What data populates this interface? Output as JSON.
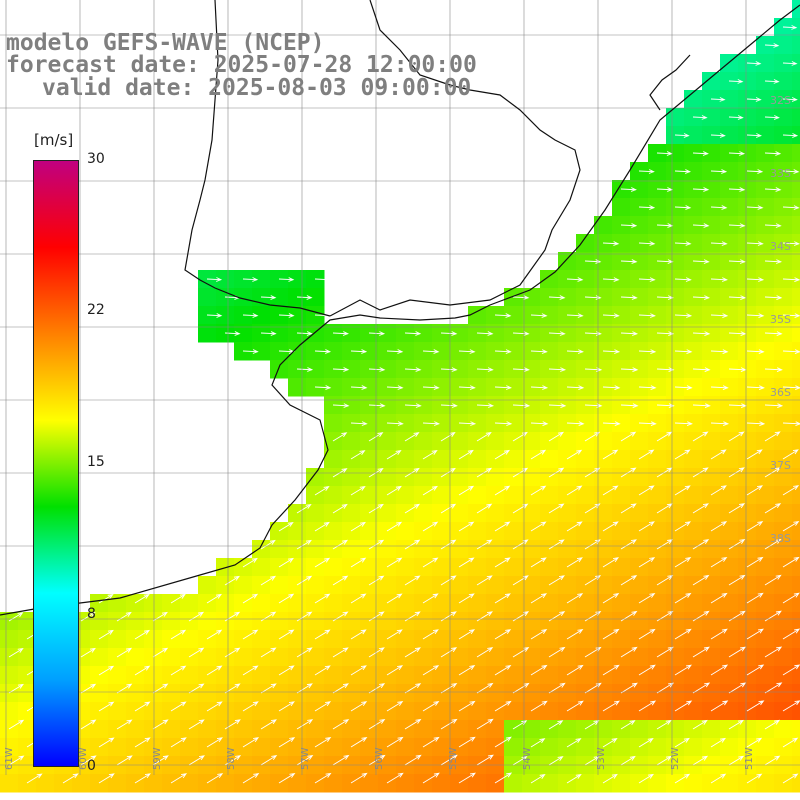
{
  "title": {
    "line1": "modelo GEFS-WAVE (NCEP)",
    "line2": "forecast date: 2025-07-28 12:00:00",
    "line3": "valid date: 2025-08-03 09:00:00"
  },
  "colorbar": {
    "unit": "[m/s]",
    "min": 0,
    "max": 30,
    "tick_labels": [
      "30",
      "22",
      "15",
      "8",
      "0"
    ],
    "tick_values": [
      30,
      22,
      15,
      8,
      0
    ],
    "colors": [
      "#0000ff",
      "#00a0ff",
      "#00ffff",
      "#00e000",
      "#ffff00",
      "#ff8000",
      "#ff0000",
      "#c00080"
    ]
  },
  "lat_labels": [
    "32S",
    "33S",
    "34S",
    "35S",
    "36S",
    "37S",
    "38S"
  ],
  "lon_labels": [
    "61W",
    "60W",
    "59W",
    "58W",
    "57W",
    "56W",
    "55W",
    "54W",
    "53W",
    "52W",
    "51W"
  ]
}
